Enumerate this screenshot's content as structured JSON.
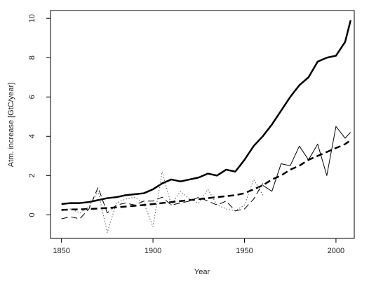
{
  "chart_data": {
    "type": "line",
    "x_label": "Year",
    "y_label": "Atm. increase [GtC/year]",
    "x": [
      1850,
      1855,
      1860,
      1865,
      1870,
      1875,
      1880,
      1885,
      1890,
      1895,
      1900,
      1905,
      1910,
      1915,
      1920,
      1925,
      1930,
      1935,
      1940,
      1945,
      1950,
      1955,
      1960,
      1965,
      1970,
      1975,
      1980,
      1985,
      1990,
      1995,
      2000,
      2005,
      2008
    ],
    "series": [
      {
        "color": "#000000",
        "dash": "solid",
        "width": 2.5,
        "values": [
          0.55,
          0.6,
          0.6,
          0.65,
          0.75,
          0.85,
          0.9,
          1.0,
          1.05,
          1.1,
          1.3,
          1.6,
          1.8,
          1.7,
          1.8,
          1.9,
          2.1,
          2.0,
          2.3,
          2.2,
          2.8,
          3.5,
          4.0,
          4.6,
          5.3,
          6.0,
          6.6,
          7.0,
          7.8,
          8.0,
          8.1,
          8.8,
          9.9
        ]
      },
      {
        "color": "#000000",
        "dash": "dashed",
        "width": 2.5,
        "values": [
          0.25,
          0.27,
          0.28,
          0.3,
          0.32,
          0.35,
          0.38,
          0.42,
          0.46,
          0.5,
          0.55,
          0.6,
          0.65,
          0.7,
          0.75,
          0.8,
          0.85,
          0.9,
          0.95,
          1.0,
          1.1,
          1.3,
          1.5,
          1.8,
          2.0,
          2.3,
          2.5,
          2.8,
          3.0,
          3.2,
          3.4,
          3.6,
          3.8
        ]
      },
      {
        "color": "#555555",
        "dash": "dotted",
        "width": 1,
        "values": [
          0.2,
          0.3,
          0.1,
          0.4,
          1.2,
          -0.9,
          0.6,
          0.8,
          0.9,
          0.6,
          -0.6,
          2.2,
          0.5,
          1.2,
          0.8,
          0.6,
          1.3,
          0.5,
          0.3,
          0.2,
          0.5,
          1.8,
          1.0,
          null,
          null,
          null,
          null,
          null,
          null,
          null,
          null,
          null,
          null
        ]
      },
      {
        "color": "#000000",
        "dash": "dashed",
        "width": 1,
        "values": [
          -0.2,
          -0.1,
          -0.2,
          0.3,
          1.4,
          0.1,
          0.5,
          0.6,
          0.5,
          0.7,
          0.7,
          0.9,
          0.5,
          0.6,
          0.7,
          0.9,
          0.7,
          0.5,
          0.7,
          0.2,
          0.3,
          0.8,
          1.6,
          null,
          null,
          null,
          null,
          null,
          null,
          null,
          null,
          null,
          null
        ]
      },
      {
        "color": "#000000",
        "dash": "solid",
        "width": 1,
        "values": [
          null,
          null,
          null,
          null,
          null,
          null,
          null,
          null,
          null,
          null,
          null,
          null,
          null,
          null,
          null,
          null,
          null,
          null,
          null,
          null,
          null,
          null,
          1.5,
          1.2,
          2.6,
          2.5,
          3.5,
          2.8,
          3.6,
          2.0,
          4.5,
          3.9,
          4.2
        ]
      }
    ],
    "xlim": [
      1844,
      2010
    ],
    "ylim": [
      -1.2,
      10.4
    ],
    "xticks": [
      1850,
      1900,
      1950,
      2000
    ],
    "yticks": [
      0,
      2,
      4,
      6,
      8,
      10
    ]
  }
}
